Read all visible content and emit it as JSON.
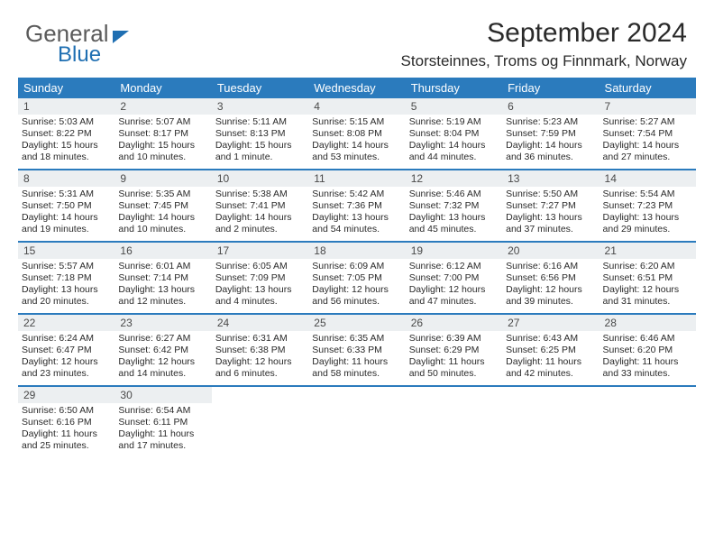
{
  "brand": {
    "line1": "General",
    "line2": "Blue",
    "triangle_color": "#1f6fb2"
  },
  "title": "September 2024",
  "subtitle": "Storsteinnes, Troms og Finnmark, Norway",
  "colors": {
    "header_bg": "#2b7bbd",
    "header_text": "#ffffff",
    "daynum_bg": "#eceff1",
    "week_divider": "#2b7bbd",
    "text": "#2a2a2a",
    "logo_gray": "#5b5b5b",
    "logo_blue": "#1f6fb2"
  },
  "day_headers": [
    "Sunday",
    "Monday",
    "Tuesday",
    "Wednesday",
    "Thursday",
    "Friday",
    "Saturday"
  ],
  "weeks": [
    [
      {
        "num": "1",
        "sunrise": "Sunrise: 5:03 AM",
        "sunset": "Sunset: 8:22 PM",
        "day1": "Daylight: 15 hours",
        "day2": "and 18 minutes."
      },
      {
        "num": "2",
        "sunrise": "Sunrise: 5:07 AM",
        "sunset": "Sunset: 8:17 PM",
        "day1": "Daylight: 15 hours",
        "day2": "and 10 minutes."
      },
      {
        "num": "3",
        "sunrise": "Sunrise: 5:11 AM",
        "sunset": "Sunset: 8:13 PM",
        "day1": "Daylight: 15 hours",
        "day2": "and 1 minute."
      },
      {
        "num": "4",
        "sunrise": "Sunrise: 5:15 AM",
        "sunset": "Sunset: 8:08 PM",
        "day1": "Daylight: 14 hours",
        "day2": "and 53 minutes."
      },
      {
        "num": "5",
        "sunrise": "Sunrise: 5:19 AM",
        "sunset": "Sunset: 8:04 PM",
        "day1": "Daylight: 14 hours",
        "day2": "and 44 minutes."
      },
      {
        "num": "6",
        "sunrise": "Sunrise: 5:23 AM",
        "sunset": "Sunset: 7:59 PM",
        "day1": "Daylight: 14 hours",
        "day2": "and 36 minutes."
      },
      {
        "num": "7",
        "sunrise": "Sunrise: 5:27 AM",
        "sunset": "Sunset: 7:54 PM",
        "day1": "Daylight: 14 hours",
        "day2": "and 27 minutes."
      }
    ],
    [
      {
        "num": "8",
        "sunrise": "Sunrise: 5:31 AM",
        "sunset": "Sunset: 7:50 PM",
        "day1": "Daylight: 14 hours",
        "day2": "and 19 minutes."
      },
      {
        "num": "9",
        "sunrise": "Sunrise: 5:35 AM",
        "sunset": "Sunset: 7:45 PM",
        "day1": "Daylight: 14 hours",
        "day2": "and 10 minutes."
      },
      {
        "num": "10",
        "sunrise": "Sunrise: 5:38 AM",
        "sunset": "Sunset: 7:41 PM",
        "day1": "Daylight: 14 hours",
        "day2": "and 2 minutes."
      },
      {
        "num": "11",
        "sunrise": "Sunrise: 5:42 AM",
        "sunset": "Sunset: 7:36 PM",
        "day1": "Daylight: 13 hours",
        "day2": "and 54 minutes."
      },
      {
        "num": "12",
        "sunrise": "Sunrise: 5:46 AM",
        "sunset": "Sunset: 7:32 PM",
        "day1": "Daylight: 13 hours",
        "day2": "and 45 minutes."
      },
      {
        "num": "13",
        "sunrise": "Sunrise: 5:50 AM",
        "sunset": "Sunset: 7:27 PM",
        "day1": "Daylight: 13 hours",
        "day2": "and 37 minutes."
      },
      {
        "num": "14",
        "sunrise": "Sunrise: 5:54 AM",
        "sunset": "Sunset: 7:23 PM",
        "day1": "Daylight: 13 hours",
        "day2": "and 29 minutes."
      }
    ],
    [
      {
        "num": "15",
        "sunrise": "Sunrise: 5:57 AM",
        "sunset": "Sunset: 7:18 PM",
        "day1": "Daylight: 13 hours",
        "day2": "and 20 minutes."
      },
      {
        "num": "16",
        "sunrise": "Sunrise: 6:01 AM",
        "sunset": "Sunset: 7:14 PM",
        "day1": "Daylight: 13 hours",
        "day2": "and 12 minutes."
      },
      {
        "num": "17",
        "sunrise": "Sunrise: 6:05 AM",
        "sunset": "Sunset: 7:09 PM",
        "day1": "Daylight: 13 hours",
        "day2": "and 4 minutes."
      },
      {
        "num": "18",
        "sunrise": "Sunrise: 6:09 AM",
        "sunset": "Sunset: 7:05 PM",
        "day1": "Daylight: 12 hours",
        "day2": "and 56 minutes."
      },
      {
        "num": "19",
        "sunrise": "Sunrise: 6:12 AM",
        "sunset": "Sunset: 7:00 PM",
        "day1": "Daylight: 12 hours",
        "day2": "and 47 minutes."
      },
      {
        "num": "20",
        "sunrise": "Sunrise: 6:16 AM",
        "sunset": "Sunset: 6:56 PM",
        "day1": "Daylight: 12 hours",
        "day2": "and 39 minutes."
      },
      {
        "num": "21",
        "sunrise": "Sunrise: 6:20 AM",
        "sunset": "Sunset: 6:51 PM",
        "day1": "Daylight: 12 hours",
        "day2": "and 31 minutes."
      }
    ],
    [
      {
        "num": "22",
        "sunrise": "Sunrise: 6:24 AM",
        "sunset": "Sunset: 6:47 PM",
        "day1": "Daylight: 12 hours",
        "day2": "and 23 minutes."
      },
      {
        "num": "23",
        "sunrise": "Sunrise: 6:27 AM",
        "sunset": "Sunset: 6:42 PM",
        "day1": "Daylight: 12 hours",
        "day2": "and 14 minutes."
      },
      {
        "num": "24",
        "sunrise": "Sunrise: 6:31 AM",
        "sunset": "Sunset: 6:38 PM",
        "day1": "Daylight: 12 hours",
        "day2": "and 6 minutes."
      },
      {
        "num": "25",
        "sunrise": "Sunrise: 6:35 AM",
        "sunset": "Sunset: 6:33 PM",
        "day1": "Daylight: 11 hours",
        "day2": "and 58 minutes."
      },
      {
        "num": "26",
        "sunrise": "Sunrise: 6:39 AM",
        "sunset": "Sunset: 6:29 PM",
        "day1": "Daylight: 11 hours",
        "day2": "and 50 minutes."
      },
      {
        "num": "27",
        "sunrise": "Sunrise: 6:43 AM",
        "sunset": "Sunset: 6:25 PM",
        "day1": "Daylight: 11 hours",
        "day2": "and 42 minutes."
      },
      {
        "num": "28",
        "sunrise": "Sunrise: 6:46 AM",
        "sunset": "Sunset: 6:20 PM",
        "day1": "Daylight: 11 hours",
        "day2": "and 33 minutes."
      }
    ],
    [
      {
        "num": "29",
        "sunrise": "Sunrise: 6:50 AM",
        "sunset": "Sunset: 6:16 PM",
        "day1": "Daylight: 11 hours",
        "day2": "and 25 minutes."
      },
      {
        "num": "30",
        "sunrise": "Sunrise: 6:54 AM",
        "sunset": "Sunset: 6:11 PM",
        "day1": "Daylight: 11 hours",
        "day2": "and 17 minutes."
      },
      {
        "empty": true
      },
      {
        "empty": true
      },
      {
        "empty": true
      },
      {
        "empty": true
      },
      {
        "empty": true
      }
    ]
  ]
}
